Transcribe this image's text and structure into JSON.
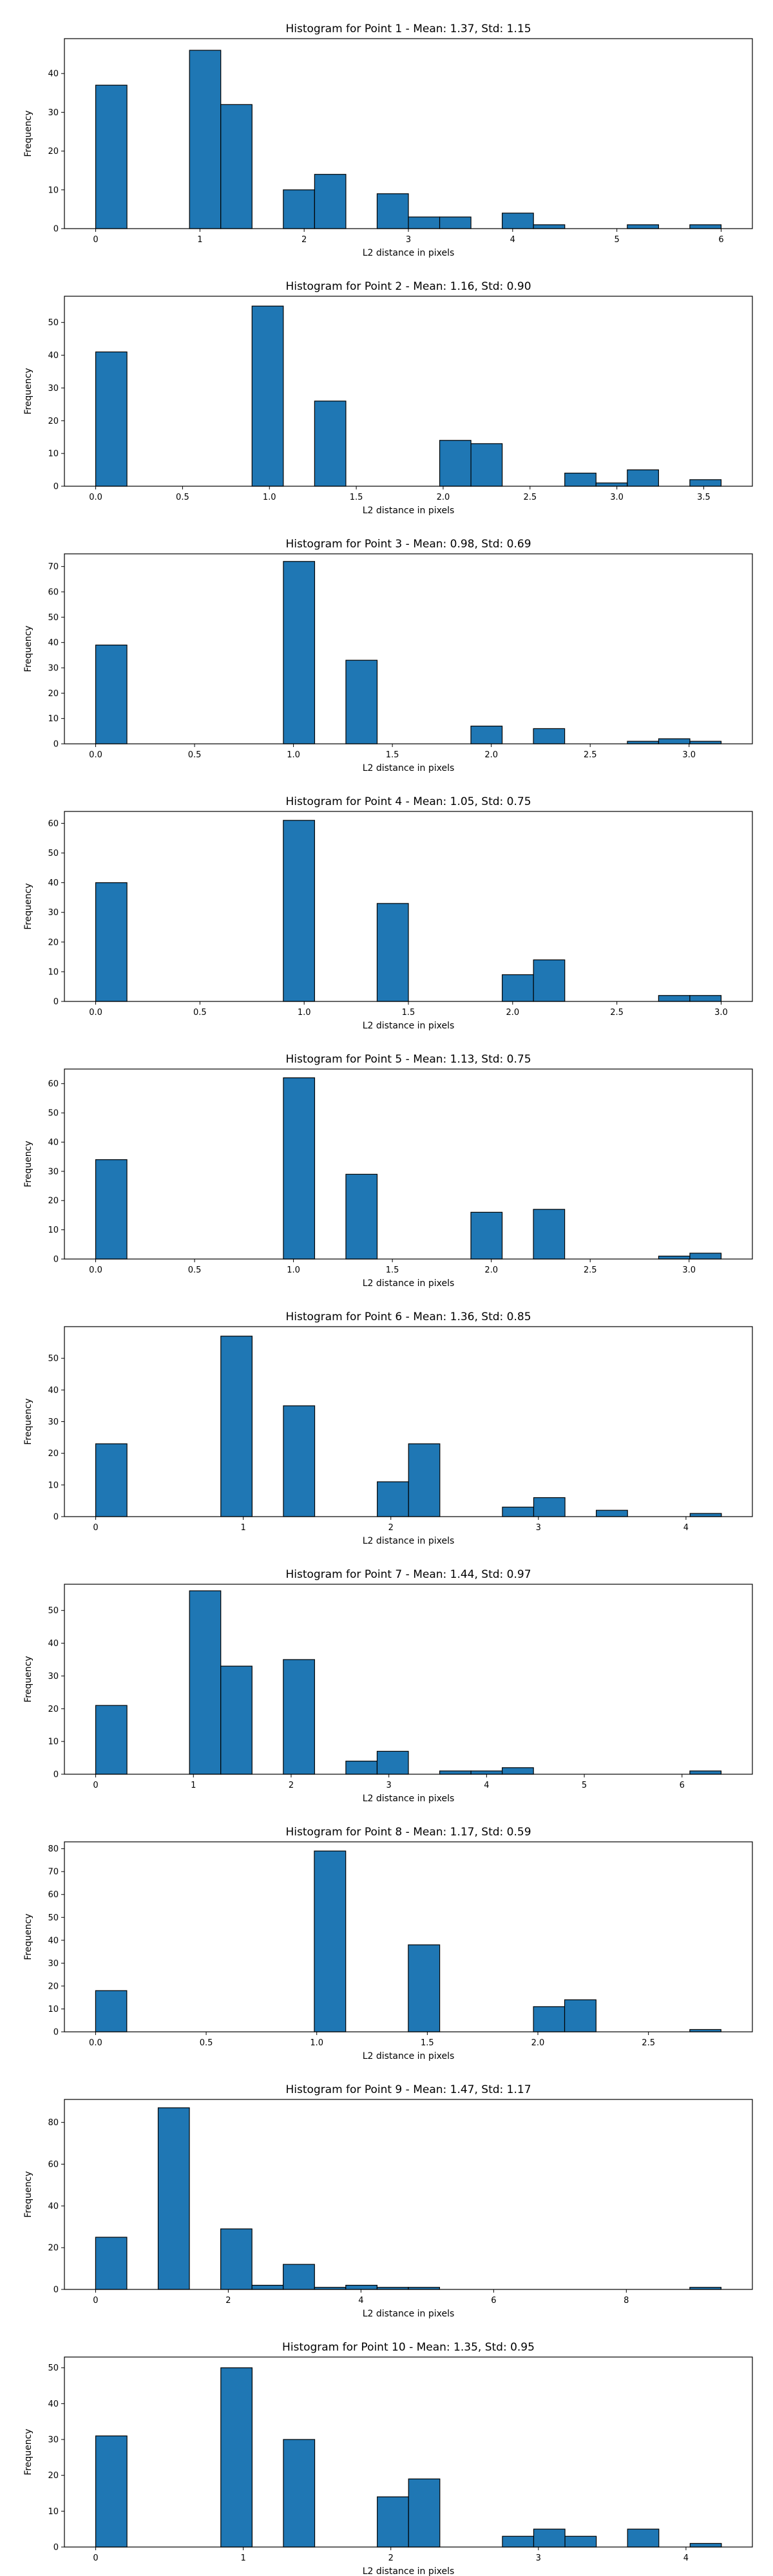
{
  "style": {
    "bar_fill": "#1f77b4",
    "bar_edge": "#000000",
    "axes_color": "#000000",
    "background": "#ffffff"
  },
  "chart_data": [
    {
      "type": "bar",
      "title": "Histogram for Point 1 - Mean: 1.37, Std: 1.15",
      "xlabel": "L2 distance in pixels",
      "ylabel": "Frequency",
      "xlim": [
        -0.3,
        6.3
      ],
      "ylim": [
        0,
        49
      ],
      "xticks": [
        0,
        1,
        2,
        3,
        4,
        5,
        6
      ],
      "xtick_labels": [
        "0",
        "1",
        "2",
        "3",
        "4",
        "5",
        "6"
      ],
      "yticks": [
        0,
        10,
        20,
        30,
        40
      ],
      "ytick_labels": [
        "0",
        "10",
        "20",
        "30",
        "40"
      ],
      "bins": [
        [
          0,
          0.3,
          37
        ],
        [
          0.9,
          1.2,
          46
        ],
        [
          1.2,
          1.5,
          32
        ],
        [
          1.8,
          2.1,
          10
        ],
        [
          2.1,
          2.4,
          14
        ],
        [
          2.7,
          3.0,
          9
        ],
        [
          3.0,
          3.3,
          3
        ],
        [
          3.3,
          3.6,
          3
        ],
        [
          3.9,
          4.2,
          4
        ],
        [
          4.2,
          4.5,
          1
        ],
        [
          5.1,
          5.4,
          1
        ],
        [
          5.7,
          6.0,
          1
        ]
      ]
    },
    {
      "type": "bar",
      "title": "Histogram for Point 2 - Mean: 1.16, Std: 0.90",
      "xlabel": "L2 distance in pixels",
      "ylabel": "Frequency",
      "xlim": [
        -0.18,
        3.78
      ],
      "ylim": [
        0,
        58
      ],
      "xticks": [
        0,
        0.5,
        1,
        1.5,
        2,
        2.5,
        3,
        3.5
      ],
      "xtick_labels": [
        "0.0",
        "0.5",
        "1.0",
        "1.5",
        "2.0",
        "2.5",
        "3.0",
        "3.5"
      ],
      "yticks": [
        0,
        10,
        20,
        30,
        40,
        50
      ],
      "ytick_labels": [
        "0",
        "10",
        "20",
        "30",
        "40",
        "50"
      ],
      "bins": [
        [
          0,
          0.18,
          41
        ],
        [
          0.9,
          1.08,
          55
        ],
        [
          1.26,
          1.44,
          26
        ],
        [
          1.98,
          2.16,
          14
        ],
        [
          2.16,
          2.34,
          13
        ],
        [
          2.7,
          2.88,
          4
        ],
        [
          2.88,
          3.06,
          1
        ],
        [
          3.06,
          3.24,
          5
        ],
        [
          3.42,
          3.6,
          2
        ]
      ]
    },
    {
      "type": "bar",
      "title": "Histogram for Point 3 - Mean: 0.98, Std: 0.69",
      "xlabel": "L2 distance in pixels",
      "ylabel": "Frequency",
      "xlim": [
        -0.158,
        3.32
      ],
      "ylim": [
        0,
        75
      ],
      "xticks": [
        0,
        0.5,
        1,
        1.5,
        2,
        2.5,
        3
      ],
      "xtick_labels": [
        "0.0",
        "0.5",
        "1.0",
        "1.5",
        "2.0",
        "2.5",
        "3.0"
      ],
      "yticks": [
        0,
        10,
        20,
        30,
        40,
        50,
        60,
        70
      ],
      "ytick_labels": [
        "0",
        "10",
        "20",
        "30",
        "40",
        "50",
        "60",
        "70"
      ],
      "bins": [
        [
          0,
          0.158,
          39
        ],
        [
          0.949,
          1.107,
          72
        ],
        [
          1.265,
          1.423,
          33
        ],
        [
          1.897,
          2.055,
          7
        ],
        [
          2.213,
          2.371,
          6
        ],
        [
          2.688,
          2.846,
          1
        ],
        [
          2.846,
          3.004,
          2
        ],
        [
          3.004,
          3.162,
          1
        ]
      ]
    },
    {
      "type": "bar",
      "title": "Histogram for Point 4 - Mean: 1.05, Std: 0.75",
      "xlabel": "L2 distance in pixels",
      "ylabel": "Frequency",
      "xlim": [
        -0.15,
        3.15
      ],
      "ylim": [
        0,
        64
      ],
      "xticks": [
        0,
        0.5,
        1,
        1.5,
        2,
        2.5,
        3
      ],
      "xtick_labels": [
        "0.0",
        "0.5",
        "1.0",
        "1.5",
        "2.0",
        "2.5",
        "3.0"
      ],
      "yticks": [
        0,
        10,
        20,
        30,
        40,
        50,
        60
      ],
      "ytick_labels": [
        "0",
        "10",
        "20",
        "30",
        "40",
        "50",
        "60"
      ],
      "bins": [
        [
          0,
          0.15,
          40
        ],
        [
          0.9,
          1.05,
          61
        ],
        [
          1.35,
          1.5,
          33
        ],
        [
          1.95,
          2.1,
          9
        ],
        [
          2.1,
          2.25,
          14
        ],
        [
          2.7,
          2.85,
          2
        ],
        [
          2.85,
          3.0,
          2
        ]
      ]
    },
    {
      "type": "bar",
      "title": "Histogram for Point 5 - Mean: 1.13, Std: 0.75",
      "xlabel": "L2 distance in pixels",
      "ylabel": "Frequency",
      "xlim": [
        -0.158,
        3.32
      ],
      "ylim": [
        0,
        65
      ],
      "xticks": [
        0,
        0.5,
        1,
        1.5,
        2,
        2.5,
        3
      ],
      "xtick_labels": [
        "0.0",
        "0.5",
        "1.0",
        "1.5",
        "2.0",
        "2.5",
        "3.0"
      ],
      "yticks": [
        0,
        10,
        20,
        30,
        40,
        50,
        60
      ],
      "ytick_labels": [
        "0",
        "10",
        "20",
        "30",
        "40",
        "50",
        "60"
      ],
      "bins": [
        [
          0,
          0.158,
          34
        ],
        [
          0.949,
          1.107,
          62
        ],
        [
          1.265,
          1.423,
          29
        ],
        [
          1.897,
          2.055,
          16
        ],
        [
          2.213,
          2.371,
          17
        ],
        [
          2.846,
          3.004,
          1
        ],
        [
          3.004,
          3.162,
          2
        ]
      ]
    },
    {
      "type": "bar",
      "title": "Histogram for Point 6 - Mean: 1.36, Std: 0.85",
      "xlabel": "L2 distance in pixels",
      "ylabel": "Frequency",
      "xlim": [
        -0.212,
        4.45
      ],
      "ylim": [
        0,
        60
      ],
      "xticks": [
        0,
        1,
        2,
        3,
        4
      ],
      "xtick_labels": [
        "0",
        "1",
        "2",
        "3",
        "4"
      ],
      "yticks": [
        0,
        10,
        20,
        30,
        40,
        50
      ],
      "ytick_labels": [
        "0",
        "10",
        "20",
        "30",
        "40",
        "50"
      ],
      "bins": [
        [
          0,
          0.212,
          23
        ],
        [
          0.848,
          1.06,
          57
        ],
        [
          1.272,
          1.484,
          35
        ],
        [
          1.908,
          2.12,
          11
        ],
        [
          2.12,
          2.332,
          23
        ],
        [
          2.756,
          2.968,
          3
        ],
        [
          2.968,
          3.18,
          6
        ],
        [
          3.392,
          3.604,
          2
        ],
        [
          4.028,
          4.24,
          1
        ]
      ]
    },
    {
      "type": "bar",
      "title": "Histogram for Point 7 - Mean: 1.44, Std: 0.97",
      "xlabel": "L2 distance in pixels",
      "ylabel": "Frequency",
      "xlim": [
        -0.32,
        6.72
      ],
      "ylim": [
        0,
        58
      ],
      "xticks": [
        0,
        1,
        2,
        3,
        4,
        5,
        6
      ],
      "xtick_labels": [
        "0",
        "1",
        "2",
        "3",
        "4",
        "5",
        "6"
      ],
      "yticks": [
        0,
        10,
        20,
        30,
        40,
        50
      ],
      "ytick_labels": [
        "0",
        "10",
        "20",
        "30",
        "40",
        "50"
      ],
      "bins": [
        [
          0,
          0.32,
          21
        ],
        [
          0.96,
          1.28,
          56
        ],
        [
          1.28,
          1.6,
          33
        ],
        [
          1.92,
          2.24,
          35
        ],
        [
          2.56,
          2.88,
          4
        ],
        [
          2.88,
          3.2,
          7
        ],
        [
          3.52,
          3.84,
          1
        ],
        [
          3.84,
          4.16,
          1
        ],
        [
          4.16,
          4.48,
          2
        ],
        [
          6.08,
          6.4,
          1
        ]
      ]
    },
    {
      "type": "bar",
      "title": "Histogram for Point 8 - Mean: 1.17, Std: 0.59",
      "xlabel": "L2 distance in pixels",
      "ylabel": "Frequency",
      "xlim": [
        -0.141,
        2.97
      ],
      "ylim": [
        0,
        83
      ],
      "xticks": [
        0,
        0.5,
        1,
        1.5,
        2,
        2.5
      ],
      "xtick_labels": [
        "0.0",
        "0.5",
        "1.0",
        "1.5",
        "2.0",
        "2.5"
      ],
      "yticks": [
        0,
        10,
        20,
        30,
        40,
        50,
        60,
        70,
        80
      ],
      "ytick_labels": [
        "0",
        "10",
        "20",
        "30",
        "40",
        "50",
        "60",
        "70",
        "80"
      ],
      "bins": [
        [
          0,
          0.141,
          18
        ],
        [
          0.989,
          1.131,
          79
        ],
        [
          1.414,
          1.556,
          38
        ],
        [
          1.98,
          2.121,
          11
        ],
        [
          2.121,
          2.263,
          14
        ],
        [
          2.687,
          2.828,
          1
        ]
      ]
    },
    {
      "type": "bar",
      "title": "Histogram for Point 9 - Mean: 1.47, Std: 1.17",
      "xlabel": "L2 distance in pixels",
      "ylabel": "Frequency",
      "xlim": [
        -0.47,
        9.9
      ],
      "ylim": [
        0,
        91
      ],
      "xticks": [
        0,
        2,
        4,
        6,
        8
      ],
      "xtick_labels": [
        "0",
        "2",
        "4",
        "6",
        "8"
      ],
      "yticks": [
        0,
        20,
        40,
        60,
        80
      ],
      "ytick_labels": [
        "0",
        "20",
        "40",
        "60",
        "80"
      ],
      "bins": [
        [
          0,
          0.471,
          25
        ],
        [
          0.943,
          1.414,
          87
        ],
        [
          1.886,
          2.357,
          29
        ],
        [
          2.357,
          2.828,
          2
        ],
        [
          2.828,
          3.3,
          12
        ],
        [
          3.3,
          3.771,
          1
        ],
        [
          3.771,
          4.243,
          2
        ],
        [
          4.243,
          4.714,
          1
        ],
        [
          4.714,
          5.185,
          1
        ],
        [
          8.957,
          9.428,
          1
        ]
      ]
    },
    {
      "type": "bar",
      "title": "Histogram for Point 10 - Mean: 1.35, Std: 0.95",
      "xlabel": "L2 distance in pixels",
      "ylabel": "Frequency",
      "xlim": [
        -0.212,
        4.45
      ],
      "ylim": [
        0,
        53
      ],
      "xticks": [
        0,
        1,
        2,
        3,
        4
      ],
      "xtick_labels": [
        "0",
        "1",
        "2",
        "3",
        "4"
      ],
      "yticks": [
        0,
        10,
        20,
        30,
        40,
        50
      ],
      "ytick_labels": [
        "0",
        "10",
        "20",
        "30",
        "40",
        "50"
      ],
      "bins": [
        [
          0,
          0.212,
          31
        ],
        [
          0.848,
          1.06,
          50
        ],
        [
          1.272,
          1.484,
          30
        ],
        [
          1.908,
          2.12,
          14
        ],
        [
          2.12,
          2.332,
          19
        ],
        [
          2.756,
          2.968,
          3
        ],
        [
          2.968,
          3.18,
          5
        ],
        [
          3.18,
          3.392,
          3
        ],
        [
          3.604,
          3.816,
          5
        ],
        [
          4.028,
          4.24,
          1
        ]
      ]
    }
  ]
}
